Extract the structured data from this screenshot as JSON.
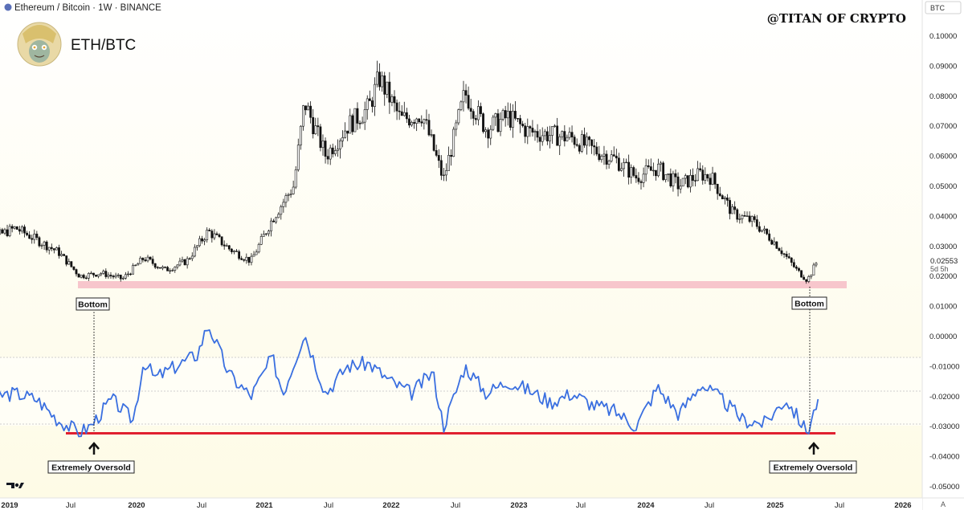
{
  "header": {
    "symbol_line": "Ethereum / Bitcoin · 1W · BINANCE",
    "watermark": "@TITAN OF CRYPTO",
    "chart_label": "ETH/BTC",
    "currency_badge": "BTC",
    "price_last": "0.02553",
    "countdown": "5d 5h"
  },
  "icons": {
    "avatar": "cartoon-avatar",
    "logo": "tradingview-logo",
    "arrow": "arrow-up-icon"
  },
  "axis": {
    "y_labels": [
      "0.10000",
      "0.09000",
      "0.08000",
      "0.07000",
      "0.06000",
      "0.05000",
      "0.04000",
      "0.03000",
      "0.02000",
      "0.01000",
      "0.00000",
      "-0.01000",
      "-0.02000",
      "-0.03000",
      "-0.04000",
      "-0.05000"
    ],
    "x_labels": [
      "2019",
      "Jul",
      "2020",
      "Jul",
      "2021",
      "Jul",
      "2022",
      "Jul",
      "2023",
      "Jul",
      "2024",
      "Jul",
      "2025",
      "Jul",
      "2026"
    ],
    "corner": "A"
  },
  "annotations": {
    "bottom_left": "Bottom",
    "bottom_right": "Bottom",
    "oversold_left": "Extremely Oversold",
    "oversold_right": "Extremely Oversold"
  },
  "colors": {
    "bg_top": "#ffffff",
    "bg_bottom": "#fefbe6",
    "candle": "#111111",
    "indicator": "#3a6fe0",
    "support_band": "#f7c6cc",
    "oversold_line": "#e0202f",
    "grid_dotted": "#cfcfcf"
  },
  "chart_data": [
    {
      "type": "candlestick",
      "symbol": "ETH/BTC",
      "timeframe": "1W",
      "ylim": [
        -0.05,
        0.1
      ],
      "x_range": [
        "2018-10",
        "2026-03"
      ],
      "support_zone": [
        0.0176,
        0.0196
      ],
      "last_price": 0.02553,
      "close_points": [
        {
          "x": "2018-10",
          "y": 0.027
        },
        {
          "x": "2018-12",
          "y": 0.033
        },
        {
          "x": "2019-02",
          "y": 0.036
        },
        {
          "x": "2019-04",
          "y": 0.032
        },
        {
          "x": "2019-06",
          "y": 0.028
        },
        {
          "x": "2019-08",
          "y": 0.02
        },
        {
          "x": "2019-10",
          "y": 0.021
        },
        {
          "x": "2019-12",
          "y": 0.019
        },
        {
          "x": "2020-02",
          "y": 0.026
        },
        {
          "x": "2020-04",
          "y": 0.022
        },
        {
          "x": "2020-06",
          "y": 0.025
        },
        {
          "x": "2020-08",
          "y": 0.035
        },
        {
          "x": "2020-10",
          "y": 0.029
        },
        {
          "x": "2020-12",
          "y": 0.025
        },
        {
          "x": "2021-02",
          "y": 0.039
        },
        {
          "x": "2021-04",
          "y": 0.05
        },
        {
          "x": "2021-05",
          "y": 0.078
        },
        {
          "x": "2021-07",
          "y": 0.06
        },
        {
          "x": "2021-09",
          "y": 0.07
        },
        {
          "x": "2021-11",
          "y": 0.076
        },
        {
          "x": "2021-12",
          "y": 0.086
        },
        {
          "x": "2022-02",
          "y": 0.072
        },
        {
          "x": "2022-04",
          "y": 0.074
        },
        {
          "x": "2022-06",
          "y": 0.052
        },
        {
          "x": "2022-08",
          "y": 0.081
        },
        {
          "x": "2022-10",
          "y": 0.069
        },
        {
          "x": "2022-12",
          "y": 0.073
        },
        {
          "x": "2023-02",
          "y": 0.068
        },
        {
          "x": "2023-04",
          "y": 0.067
        },
        {
          "x": "2023-06",
          "y": 0.066
        },
        {
          "x": "2023-08",
          "y": 0.062
        },
        {
          "x": "2023-10",
          "y": 0.059
        },
        {
          "x": "2023-12",
          "y": 0.053
        },
        {
          "x": "2024-02",
          "y": 0.056
        },
        {
          "x": "2024-04",
          "y": 0.05
        },
        {
          "x": "2024-06",
          "y": 0.054
        },
        {
          "x": "2024-07",
          "y": 0.053
        },
        {
          "x": "2024-09",
          "y": 0.041
        },
        {
          "x": "2024-11",
          "y": 0.038
        },
        {
          "x": "2025-01",
          "y": 0.031
        },
        {
          "x": "2025-03",
          "y": 0.022
        },
        {
          "x": "2025-04",
          "y": 0.0186
        },
        {
          "x": "2025-05",
          "y": 0.0255
        }
      ]
    },
    {
      "type": "line",
      "ylim": [
        -0.05,
        0.1
      ],
      "oversold_level": -0.0325,
      "points": [
        {
          "x": "2018-10",
          "y": -0.026
        },
        {
          "x": "2018-12",
          "y": -0.02
        },
        {
          "x": "2019-02",
          "y": -0.019
        },
        {
          "x": "2019-04",
          "y": -0.021
        },
        {
          "x": "2019-06",
          "y": -0.028
        },
        {
          "x": "2019-08",
          "y": -0.032
        },
        {
          "x": "2019-09",
          "y": -0.03
        },
        {
          "x": "2019-11",
          "y": -0.021
        },
        {
          "x": "2020-01",
          "y": -0.028
        },
        {
          "x": "2020-02",
          "y": -0.008
        },
        {
          "x": "2020-03",
          "y": -0.014
        },
        {
          "x": "2020-05",
          "y": -0.01
        },
        {
          "x": "2020-07",
          "y": -0.006
        },
        {
          "x": "2020-08",
          "y": 0.004
        },
        {
          "x": "2020-10",
          "y": -0.013
        },
        {
          "x": "2020-12",
          "y": -0.02
        },
        {
          "x": "2021-02",
          "y": -0.007
        },
        {
          "x": "2021-03",
          "y": -0.019
        },
        {
          "x": "2021-05",
          "y": 0.001
        },
        {
          "x": "2021-07",
          "y": -0.019
        },
        {
          "x": "2021-09",
          "y": -0.01
        },
        {
          "x": "2021-11",
          "y": -0.009
        },
        {
          "x": "2022-01",
          "y": -0.015
        },
        {
          "x": "2022-03",
          "y": -0.019
        },
        {
          "x": "2022-05",
          "y": -0.012
        },
        {
          "x": "2022-06",
          "y": -0.03
        },
        {
          "x": "2022-08",
          "y": -0.01
        },
        {
          "x": "2022-10",
          "y": -0.019
        },
        {
          "x": "2022-12",
          "y": -0.015
        },
        {
          "x": "2023-02",
          "y": -0.018
        },
        {
          "x": "2023-04",
          "y": -0.022
        },
        {
          "x": "2023-06",
          "y": -0.019
        },
        {
          "x": "2023-08",
          "y": -0.023
        },
        {
          "x": "2023-10",
          "y": -0.025
        },
        {
          "x": "2023-12",
          "y": -0.03
        },
        {
          "x": "2024-02",
          "y": -0.017
        },
        {
          "x": "2024-04",
          "y": -0.026
        },
        {
          "x": "2024-06",
          "y": -0.016
        },
        {
          "x": "2024-08",
          "y": -0.021
        },
        {
          "x": "2024-10",
          "y": -0.028
        },
        {
          "x": "2024-12",
          "y": -0.029
        },
        {
          "x": "2025-02",
          "y": -0.021
        },
        {
          "x": "2025-04",
          "y": -0.032
        },
        {
          "x": "2025-05",
          "y": -0.021
        }
      ]
    }
  ]
}
